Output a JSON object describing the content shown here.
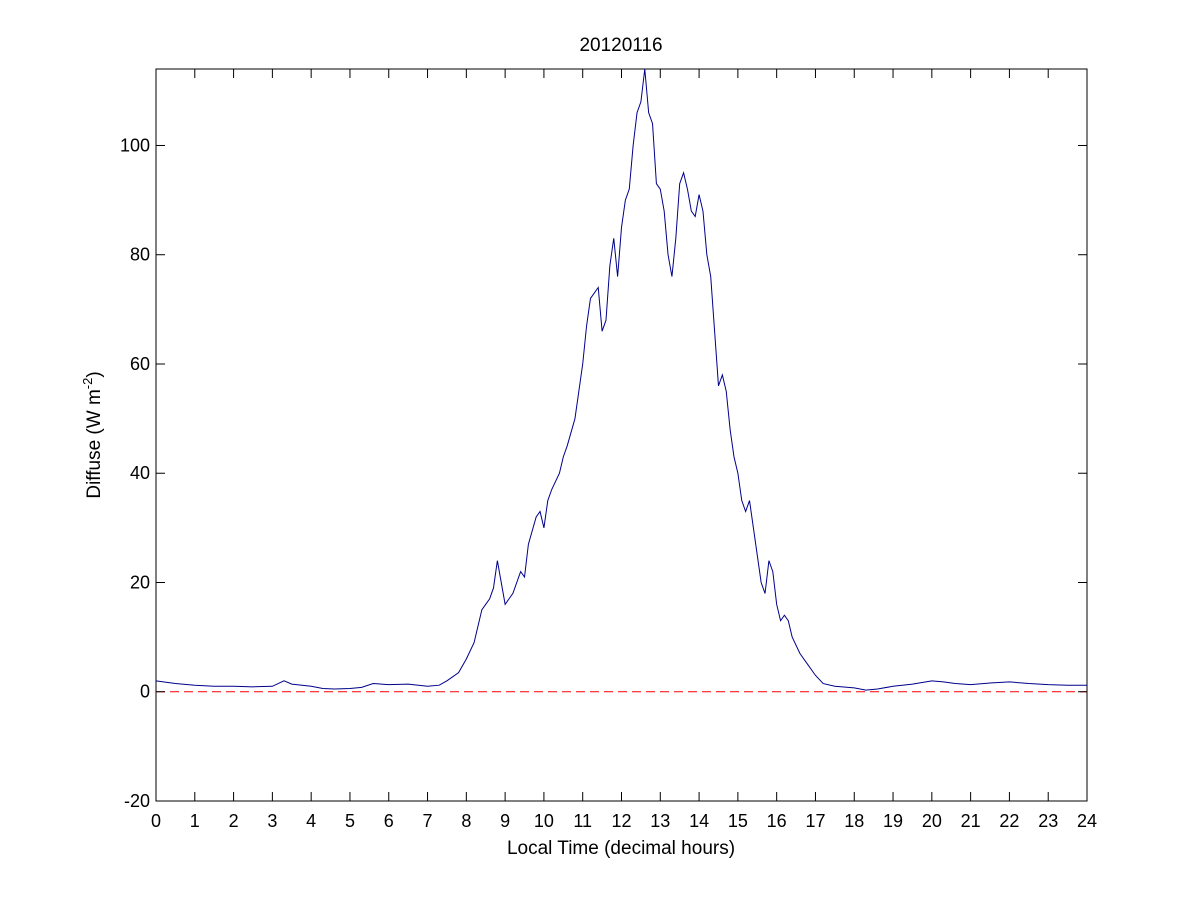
{
  "chart_data": {
    "type": "line",
    "title": "20120116",
    "xlabel": "Local Time (decimal hours)",
    "ylabel": {
      "text": "Diffuse (W m",
      "superscript": "-2",
      "suffix": ")"
    },
    "xlim": [
      0,
      24
    ],
    "ylim": [
      -20,
      114
    ],
    "xticks": [
      0,
      1,
      2,
      3,
      4,
      5,
      6,
      7,
      8,
      9,
      10,
      11,
      12,
      13,
      14,
      15,
      16,
      17,
      18,
      19,
      20,
      21,
      22,
      23,
      24
    ],
    "xtick_labels": [
      "0",
      "1",
      "2",
      "3",
      "4",
      "5",
      "6",
      "7",
      "8",
      "9",
      "10",
      "11",
      "12",
      "13",
      "14",
      "15",
      "16",
      "17",
      "18",
      "19",
      "20",
      "21",
      "22",
      "23",
      "24"
    ],
    "yticks": [
      -20,
      0,
      20,
      40,
      60,
      80,
      100
    ],
    "ytick_labels": [
      "-20",
      "0",
      "20",
      "40",
      "60",
      "80",
      "100"
    ],
    "grid": false,
    "series": [
      {
        "style": "solid",
        "color": "#00008b",
        "x": [
          0,
          0.5,
          1,
          1.5,
          2,
          2.5,
          3,
          3.3,
          3.5,
          4,
          4.3,
          4.6,
          5,
          5.3,
          5.6,
          6,
          6.5,
          7,
          7.3,
          7.5,
          7.8,
          8,
          8.2,
          8.4,
          8.5,
          8.6,
          8.7,
          8.8,
          8.9,
          9,
          9.1,
          9.2,
          9.4,
          9.5,
          9.6,
          9.8,
          9.9,
          10,
          10.1,
          10.2,
          10.4,
          10.5,
          10.6,
          10.8,
          11,
          11.1,
          11.2,
          11.3,
          11.4,
          11.5,
          11.6,
          11.7,
          11.8,
          11.9,
          12,
          12.1,
          12.2,
          12.3,
          12.4,
          12.5,
          12.6,
          12.7,
          12.8,
          12.9,
          13,
          13.1,
          13.2,
          13.3,
          13.4,
          13.5,
          13.6,
          13.7,
          13.8,
          13.9,
          14,
          14.1,
          14.2,
          14.3,
          14.4,
          14.5,
          14.6,
          14.7,
          14.8,
          14.9,
          15,
          15.1,
          15.2,
          15.3,
          15.4,
          15.5,
          15.6,
          15.7,
          15.8,
          15.9,
          16,
          16.1,
          16.2,
          16.3,
          16.4,
          16.6,
          16.8,
          17,
          17.2,
          17.5,
          18,
          18.3,
          18.6,
          19,
          19.5,
          20,
          20.3,
          20.6,
          21,
          21.5,
          22,
          22.5,
          23,
          23.5,
          24
        ],
        "y": [
          2,
          1.5,
          1.2,
          1,
          1,
          0.9,
          1,
          2,
          1.4,
          1,
          0.6,
          0.5,
          0.6,
          0.8,
          1.5,
          1.3,
          1.4,
          1,
          1.2,
          2,
          3.5,
          6,
          9,
          15,
          16,
          17,
          19,
          24,
          20,
          16,
          17,
          18,
          22,
          21,
          27,
          32,
          33,
          30,
          35,
          37,
          40,
          43,
          45,
          50,
          60,
          67,
          72,
          73,
          74,
          66,
          68,
          78,
          83,
          76,
          85,
          90,
          92,
          100,
          106,
          108,
          114,
          106,
          104,
          93,
          92,
          88,
          80,
          76,
          83,
          93,
          95,
          92,
          88,
          87,
          91,
          88,
          80,
          76,
          66,
          56,
          58,
          55,
          48,
          43,
          40,
          35,
          33,
          35,
          30,
          25,
          20,
          18,
          24,
          22,
          16,
          13,
          14,
          13,
          10,
          7,
          5,
          3,
          1.5,
          1,
          0.7,
          0.3,
          0.5,
          1,
          1.4,
          2,
          1.8,
          1.5,
          1.3,
          1.6,
          1.8,
          1.5,
          1.3,
          1.2,
          1.2
        ]
      },
      {
        "style": "dashed",
        "color": "#ff0000",
        "x": [
          0,
          24
        ],
        "y": [
          0,
          0
        ]
      }
    ]
  }
}
